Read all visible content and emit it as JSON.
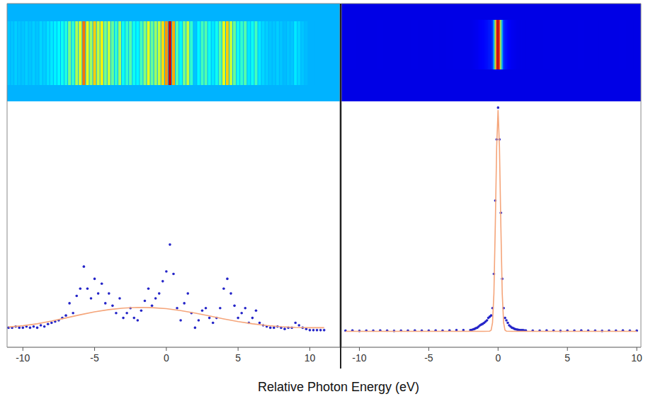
{
  "chart_data": [
    {
      "type": "line",
      "xlim": [
        -11.1,
        12.1
      ],
      "xticks": [
        -10,
        -5,
        0,
        5,
        10
      ],
      "ylim": [
        0,
        100
      ],
      "tick_labels": "x",
      "grid": false,
      "series": [
        {
          "color": "#2424c8",
          "marker": "circle",
          "line_style": "none",
          "x": [
            -11,
            -10.75,
            -10.5,
            -10.25,
            -10,
            -9.75,
            -9.5,
            -9.25,
            -9,
            -8.75,
            -8.5,
            -8.25,
            -8,
            -7.75,
            -7.5,
            -7.25,
            -7,
            -6.75,
            -6.5,
            -6.25,
            -6,
            -5.75,
            -5.5,
            -5.25,
            -5,
            -4.75,
            -4.5,
            -4.25,
            -4,
            -3.75,
            -3.5,
            -3.25,
            -3,
            -2.75,
            -2.5,
            -2.25,
            -2,
            -1.75,
            -1.5,
            -1.25,
            -1,
            -0.75,
            -0.5,
            -0.25,
            0,
            0.25,
            0.5,
            0.75,
            1,
            1.25,
            1.5,
            1.75,
            2,
            2.25,
            2.5,
            2.75,
            3,
            3.25,
            3.5,
            3.75,
            4,
            4.25,
            4.5,
            4.75,
            5,
            5.25,
            5.5,
            5.75,
            6,
            6.25,
            6.5,
            6.75,
            7,
            7.25,
            7.5,
            7.75,
            8,
            8.25,
            8.5,
            8.75,
            9,
            9.25,
            9.5,
            9.75,
            10,
            10.25,
            10.5,
            10.75,
            11
          ],
          "values": [
            8,
            8,
            8.5,
            8,
            8,
            8.5,
            8,
            8.5,
            8,
            9,
            8.5,
            9.5,
            10,
            10.5,
            11,
            12,
            13,
            18,
            14,
            21,
            24,
            33,
            24,
            20,
            28,
            22,
            26,
            18,
            22,
            17,
            14,
            20,
            12,
            14,
            16,
            12,
            11,
            15,
            19,
            24,
            17,
            20,
            22,
            27,
            31,
            42,
            30,
            16,
            11,
            18,
            22,
            14,
            8,
            11,
            15,
            16,
            12,
            10,
            12,
            16,
            24,
            28,
            22,
            17,
            12,
            14,
            16,
            10,
            12,
            15,
            10,
            9,
            8.5,
            8,
            8,
            8.5,
            8,
            7.5,
            8,
            8,
            10,
            9,
            8,
            7.5,
            7,
            7,
            7,
            7,
            7
          ]
        },
        {
          "color": "#f5a57a",
          "marker": "none",
          "line_style": "solid",
          "x": [
            -11,
            -10,
            -9,
            -8,
            -7,
            -6,
            -5,
            -4,
            -3,
            -2,
            -1,
            0,
            1,
            2,
            3,
            4,
            5,
            6,
            7,
            8,
            9,
            10,
            11
          ],
          "values": [
            8.3,
            8.8,
            9.6,
            10.7,
            12,
            13.3,
            14.5,
            15.4,
            16,
            16.3,
            16.2,
            15.8,
            15,
            14,
            12.8,
            11.6,
            10.5,
            9.6,
            8.9,
            8.4,
            8.1,
            8,
            8
          ]
        }
      ]
    },
    {
      "type": "line",
      "xlim": [
        -11.3,
        10.3
      ],
      "xticks": [
        -10,
        -5,
        0,
        5,
        10
      ],
      "ylim": [
        0,
        100
      ],
      "tick_labels": "x",
      "grid": false,
      "series": [
        {
          "color": "#2424c8",
          "marker": "circle",
          "line_style": "none",
          "x": [
            -11,
            -10.5,
            -10,
            -9.5,
            -9,
            -8.5,
            -8,
            -7.5,
            -7,
            -6.5,
            -6,
            -5.5,
            -5,
            -4.5,
            -4,
            -3.5,
            -3,
            -2.5,
            -2,
            -1.9,
            -1.8,
            -1.7,
            -1.6,
            -1.5,
            -1.4,
            -1.3,
            -1.2,
            -1.1,
            -1,
            -0.9,
            -0.8,
            -0.7,
            -0.6,
            -0.5,
            -0.4,
            -0.3,
            -0.2,
            -0.1,
            0,
            0.1,
            0.2,
            0.3,
            0.4,
            0.5,
            0.6,
            0.7,
            0.8,
            0.9,
            1,
            1.1,
            1.2,
            1.3,
            1.4,
            1.5,
            1.6,
            1.7,
            1.8,
            1.9,
            2,
            2.5,
            3,
            3.5,
            4,
            4.5,
            5,
            5.5,
            6,
            6.5,
            7,
            7.5,
            8,
            8.5,
            9,
            9.5,
            10
          ],
          "values": [
            6.8,
            6.9,
            6.7,
            6.8,
            6.8,
            6.9,
            6.8,
            6.7,
            6.8,
            6.8,
            6.9,
            6.8,
            6.8,
            6.9,
            6.8,
            6.9,
            7,
            7,
            7,
            7.1,
            7.3,
            7.5,
            7.8,
            8,
            8.5,
            9,
            9.3,
            9.6,
            10,
            10.5,
            11,
            12,
            12.5,
            13,
            16,
            30,
            60,
            85,
            98,
            85,
            55,
            28,
            16,
            12,
            11,
            10,
            9,
            8.5,
            8,
            7.8,
            7.5,
            7.3,
            7.2,
            7.1,
            7,
            7,
            7,
            6.9,
            6.9,
            6.8,
            6.8,
            6.9,
            6.8,
            6.7,
            6.8,
            6.8,
            6.9,
            6.8,
            6.8,
            6.7,
            6.8,
            6.8,
            6.9,
            6.8,
            6.8
          ]
        },
        {
          "color": "#f5a57a",
          "marker": "none",
          "line_style": "solid",
          "x": [
            -11,
            -2,
            -1,
            -0.6,
            -0.5,
            -0.4,
            -0.3,
            -0.2,
            -0.1,
            0,
            0.1,
            0.2,
            0.3,
            0.4,
            0.5,
            0.6,
            1,
            2,
            10
          ],
          "values": [
            6.5,
            6.5,
            6.5,
            6.6,
            7,
            10,
            22,
            50,
            82,
            97,
            82,
            50,
            22,
            10,
            7,
            6.6,
            6.5,
            6.5,
            6.5
          ]
        }
      ]
    }
  ],
  "xlabel": "Relative Photon Energy (eV)"
}
